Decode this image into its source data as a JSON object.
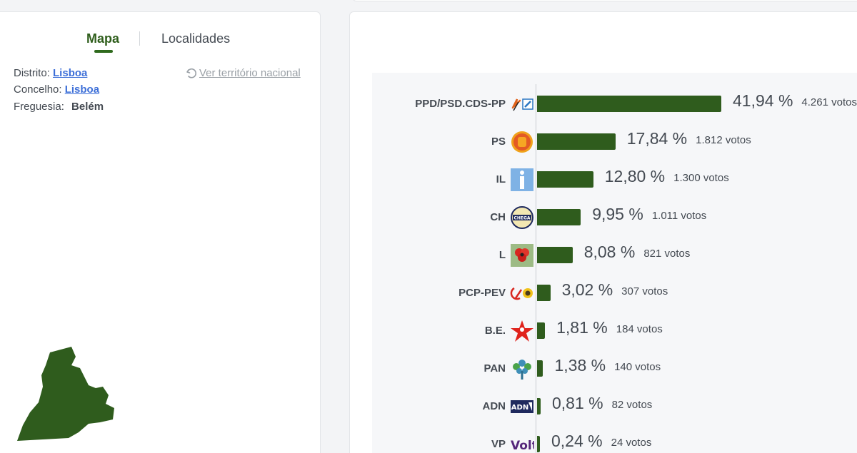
{
  "tabs": {
    "map_label": "Mapa",
    "localities_label": "Localidades"
  },
  "location": {
    "district_label": "Distrito:",
    "district_value": "Lisboa",
    "municipality_label": "Concelho:",
    "municipality_value": "Lisboa",
    "parish_label": "Freguesia:",
    "parish_value": "Belém"
  },
  "national_link": "Ver território nacional",
  "colors": {
    "bar": "#2f5c1d",
    "accent": "#2f6a1d",
    "link": "#3d6fd8",
    "map_fill": "#2f5c1d"
  },
  "chart_data": {
    "type": "bar",
    "orientation": "horizontal",
    "categories": [
      "PPD/PSD.CDS-PP",
      "PS",
      "IL",
      "CH",
      "L",
      "PCP-PEV",
      "B.E.",
      "PAN",
      "ADN",
      "VP"
    ],
    "values": [
      41.94,
      17.84,
      12.8,
      9.95,
      8.08,
      3.02,
      1.81,
      1.38,
      0.81,
      0.24
    ],
    "percent_labels": [
      "41,94 %",
      "17,84 %",
      "12,80 %",
      "9,95 %",
      "8,08 %",
      "3,02 %",
      "1,81 %",
      "1,38 %",
      "0,81 %",
      "0,24 %"
    ],
    "votes_labels": [
      "4.261 votos",
      "1.812 votos",
      "1.300 votos",
      "1.011 votos",
      "821 votos",
      "307 votos",
      "184 votos",
      "140 votos",
      "82 votos",
      "24 votos"
    ],
    "votes": [
      4261,
      1812,
      1300,
      1011,
      821,
      307,
      184,
      140,
      82,
      24
    ],
    "logos": [
      "ppd-psd-cds-icon",
      "ps-fist-icon",
      "il-icon",
      "chega-icon",
      "livre-poppy-icon",
      "pcp-pev-icon",
      "be-star-icon",
      "pan-tree-icon",
      "adn-icon",
      "volt-icon"
    ],
    "volt_text": "Volt",
    "chega_text": "CHEGA",
    "adn_text": "ADN"
  }
}
